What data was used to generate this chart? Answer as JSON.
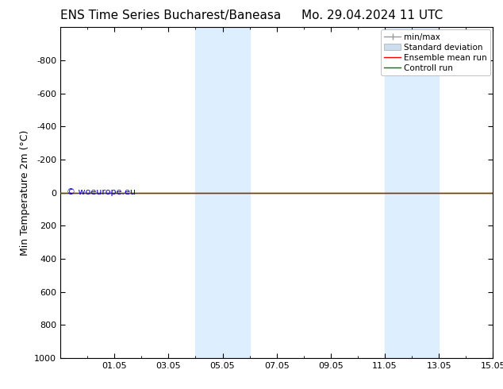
{
  "title_left": "ENS Time Series Bucharest/Baneasa",
  "title_right": "Mo. 29.04.2024 11 UTC",
  "ylabel": "Min Temperature 2m (°C)",
  "ylim": [
    -1000,
    1000
  ],
  "yticks": [
    -800,
    -600,
    -400,
    -200,
    0,
    200,
    400,
    600,
    800,
    1000
  ],
  "xtick_labels": [
    "01.05",
    "03.05",
    "05.05",
    "07.05",
    "09.05",
    "11.05",
    "13.05",
    "15.05"
  ],
  "xtick_positions": [
    2,
    4,
    6,
    8,
    10,
    12,
    14,
    16
  ],
  "xlim": [
    0,
    16
  ],
  "shaded_bands": [
    {
      "x_start": 5.0,
      "x_end": 7.0
    },
    {
      "x_start": 12.0,
      "x_end": 14.0
    }
  ],
  "shaded_color": "#ddeeff",
  "line_color_control": "#007700",
  "line_color_ensemble": "#ff0000",
  "watermark_text": "© woeurope.eu",
  "watermark_color": "#0000cc",
  "legend_entries": [
    {
      "label": "min/max",
      "color": "#aaaaaa"
    },
    {
      "label": "Standard deviation",
      "color": "#ccddee"
    },
    {
      "label": "Ensemble mean run",
      "color": "#ff0000"
    },
    {
      "label": "Controll run",
      "color": "#007700"
    }
  ],
  "background_color": "#ffffff",
  "title_fontsize": 11,
  "axis_label_fontsize": 9,
  "tick_fontsize": 8,
  "legend_fontsize": 7.5,
  "watermark_fontsize": 8
}
